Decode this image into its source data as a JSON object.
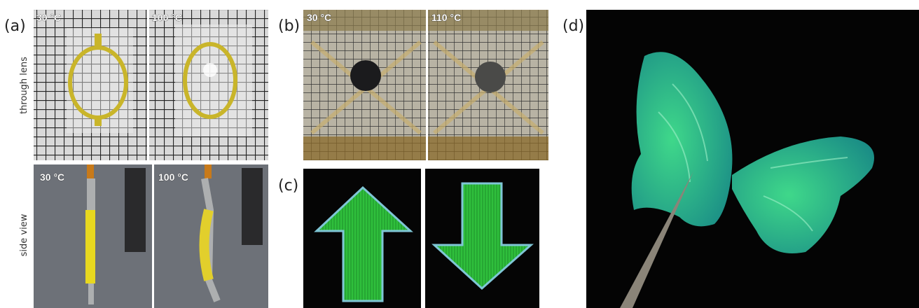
{
  "panels": [
    {
      "label": "(a)",
      "row_labels": [
        "through lens",
        "side view"
      ],
      "captions": [
        "30 °C",
        "100 °C",
        "30 °C",
        "100 °C"
      ]
    },
    {
      "label": "(b)",
      "captions": [
        "30 °C",
        "110 °C"
      ]
    },
    {
      "label": "(c)"
    },
    {
      "label": "(d)"
    }
  ]
}
